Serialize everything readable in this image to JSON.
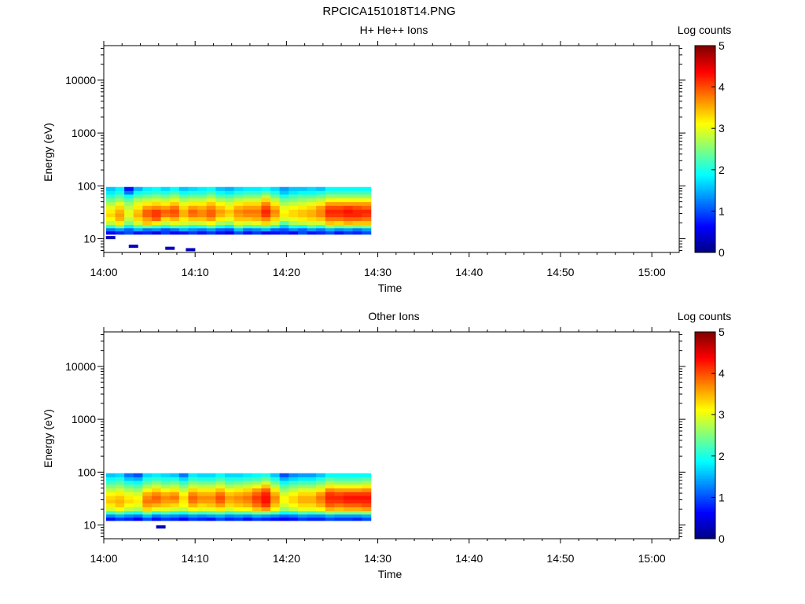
{
  "page": {
    "title": "RPCICA151018T14.PNG"
  },
  "chart_data": [
    {
      "type": "heatmap",
      "title": "H+ He++ Ions",
      "xlabel": "Time",
      "ylabel": "Energy (eV)",
      "x_scale": "time",
      "y_scale": "log",
      "xlim": [
        "14:00",
        "15:03"
      ],
      "ylim": [
        5.5,
        45000
      ],
      "x_ticks": [
        "14:00",
        "14:10",
        "14:20",
        "14:30",
        "14:40",
        "14:50",
        "15:00"
      ],
      "y_ticks": [
        "10",
        "100",
        "1000",
        "10000"
      ],
      "colorbar": {
        "label": "Log counts",
        "range": [
          0,
          5
        ],
        "ticks": [
          "0",
          "1",
          "2",
          "3",
          "4",
          "5"
        ],
        "colormap": "jet"
      },
      "energy_bins_eV": [
        13,
        15,
        17,
        20,
        24,
        28,
        33,
        39,
        46,
        54,
        64,
        75,
        88
      ],
      "times": [
        "14:00:45",
        "14:01:45",
        "14:02:45",
        "14:03:45",
        "14:04:45",
        "14:05:45",
        "14:06:45",
        "14:07:45",
        "14:08:45",
        "14:09:45",
        "14:10:45",
        "14:11:45",
        "14:12:45",
        "14:13:45",
        "14:14:45",
        "14:15:45",
        "14:16:45",
        "14:17:45",
        "14:18:45",
        "14:19:45",
        "14:20:45",
        "14:21:45",
        "14:22:45",
        "14:23:45",
        "14:24:45",
        "14:25:45",
        "14:26:45",
        "14:27:45",
        "14:28:45"
      ],
      "values": [
        [
          0.6,
          0.8,
          1.0,
          0.7,
          0.8,
          0.5,
          0.9,
          0.6,
          0.7,
          0.9,
          0.7,
          0.9,
          0.7,
          0.5,
          1.0,
          0.7,
          0.9,
          0.6,
          0.7,
          0.8,
          0.6,
          1.0,
          0.7,
          0.8,
          1.0,
          0.7,
          0.9,
          0.8,
          1.0
        ],
        [
          1.2,
          1.4,
          1.1,
          1.5,
          1.2,
          1.3,
          1.0,
          1.2,
          1.5,
          1.3,
          1.2,
          1.4,
          1.1,
          1.0,
          1.6,
          1.2,
          1.3,
          1.5,
          1.1,
          1.0,
          1.3,
          1.1,
          1.4,
          1.2,
          1.5,
          1.3,
          1.4,
          1.2,
          1.4
        ],
        [
          2.1,
          2.5,
          1.8,
          2.3,
          2.4,
          2.2,
          2.0,
          2.3,
          2.2,
          2.0,
          2.1,
          2.4,
          2.0,
          1.8,
          2.5,
          2.2,
          2.3,
          2.4,
          2.1,
          1.6,
          2.0,
          1.9,
          2.3,
          2.1,
          2.6,
          2.4,
          2.5,
          2.4,
          2.5
        ],
        [
          2.8,
          3.2,
          2.5,
          2.9,
          3.4,
          3.2,
          2.8,
          3.0,
          2.9,
          2.8,
          2.9,
          3.1,
          2.7,
          2.6,
          3.0,
          2.9,
          3.0,
          3.3,
          2.9,
          2.3,
          2.7,
          2.8,
          2.9,
          2.9,
          3.4,
          3.3,
          3.5,
          3.4,
          3.4
        ],
        [
          3.1,
          3.5,
          2.8,
          3.3,
          3.6,
          3.9,
          3.3,
          3.5,
          3.2,
          3.4,
          3.4,
          3.6,
          3.2,
          3.0,
          3.4,
          3.4,
          3.5,
          3.7,
          3.3,
          2.9,
          3.0,
          3.2,
          3.3,
          3.4,
          3.8,
          3.8,
          3.9,
          3.9,
          3.8
        ],
        [
          3.3,
          3.6,
          3.0,
          3.5,
          3.9,
          4.1,
          3.8,
          3.9,
          3.5,
          3.8,
          3.7,
          3.9,
          3.5,
          3.3,
          3.6,
          3.7,
          3.7,
          4.1,
          3.6,
          3.2,
          3.3,
          3.4,
          3.5,
          3.7,
          4.1,
          4.1,
          4.2,
          4.2,
          4.1
        ],
        [
          3.2,
          3.5,
          3.0,
          3.4,
          3.9,
          4.1,
          3.9,
          4.0,
          3.5,
          3.9,
          3.7,
          3.9,
          3.6,
          3.4,
          3.7,
          3.8,
          3.8,
          4.2,
          3.7,
          3.1,
          3.3,
          3.4,
          3.5,
          3.7,
          4.2,
          4.2,
          4.3,
          4.2,
          4.2
        ],
        [
          3.0,
          3.3,
          2.8,
          3.2,
          3.6,
          3.7,
          3.6,
          3.8,
          3.3,
          3.6,
          3.5,
          3.7,
          3.4,
          3.2,
          3.5,
          3.6,
          3.6,
          4.0,
          3.5,
          3.0,
          3.1,
          3.2,
          3.3,
          3.6,
          4.0,
          4.0,
          4.1,
          4.0,
          3.9
        ],
        [
          2.7,
          3.0,
          2.6,
          3.0,
          3.2,
          3.3,
          3.2,
          3.4,
          3.0,
          3.2,
          3.2,
          3.4,
          3.1,
          2.9,
          3.2,
          3.3,
          3.3,
          3.7,
          3.2,
          2.7,
          2.8,
          2.9,
          3.0,
          3.2,
          3.6,
          3.6,
          3.6,
          3.6,
          3.6
        ],
        [
          2.4,
          2.6,
          2.3,
          2.7,
          2.8,
          2.9,
          2.8,
          3.0,
          2.7,
          2.8,
          2.8,
          3.0,
          2.7,
          2.6,
          2.8,
          2.9,
          2.9,
          3.3,
          2.8,
          2.4,
          2.5,
          2.6,
          2.7,
          2.8,
          3.1,
          3.1,
          3.1,
          3.1,
          3.1
        ],
        [
          2.1,
          2.3,
          1.9,
          2.3,
          2.4,
          2.5,
          2.4,
          2.6,
          2.3,
          2.4,
          2.4,
          2.6,
          2.3,
          2.2,
          2.4,
          2.5,
          2.5,
          2.8,
          2.4,
          2.0,
          2.2,
          2.3,
          2.3,
          2.4,
          2.6,
          2.6,
          2.6,
          2.6,
          2.6
        ],
        [
          1.8,
          2.0,
          1.2,
          1.9,
          2.0,
          2.1,
          2.0,
          2.2,
          1.9,
          2.0,
          2.0,
          2.2,
          1.9,
          1.8,
          2.0,
          2.1,
          2.1,
          2.3,
          2.0,
          1.6,
          1.8,
          1.9,
          1.9,
          2.0,
          2.2,
          2.2,
          2.2,
          2.2,
          2.2
        ],
        [
          1.6,
          1.8,
          0.7,
          1.5,
          1.8,
          1.9,
          1.7,
          1.9,
          1.6,
          1.7,
          1.8,
          1.9,
          1.6,
          1.5,
          1.7,
          1.8,
          1.8,
          1.9,
          1.7,
          1.4,
          1.6,
          1.6,
          1.7,
          1.6,
          1.9,
          1.9,
          1.9,
          1.9,
          1.9
        ]
      ],
      "isolated_points": [
        {
          "time": "14:00:45",
          "energy_eV": 10.5,
          "value": 0.3
        },
        {
          "time": "14:03:15",
          "energy_eV": 7.2,
          "value": 0.3
        },
        {
          "time": "14:07:15",
          "energy_eV": 6.6,
          "value": 0.3
        },
        {
          "time": "14:09:30",
          "energy_eV": 6.2,
          "value": 0.3
        }
      ]
    },
    {
      "type": "heatmap",
      "title": "Other Ions",
      "xlabel": "Time",
      "ylabel": "Energy (eV)",
      "x_scale": "time",
      "y_scale": "log",
      "xlim": [
        "14:00",
        "15:03"
      ],
      "ylim": [
        5.5,
        45000
      ],
      "x_ticks": [
        "14:00",
        "14:10",
        "14:20",
        "14:30",
        "14:40",
        "14:50",
        "15:00"
      ],
      "y_ticks": [
        "10",
        "100",
        "1000",
        "10000"
      ],
      "colorbar": {
        "label": "Log counts",
        "range": [
          0,
          5
        ],
        "ticks": [
          "0",
          "1",
          "2",
          "3",
          "4",
          "5"
        ],
        "colormap": "jet"
      },
      "energy_bins_eV": [
        13,
        15,
        17,
        20,
        24,
        28,
        33,
        39,
        46,
        54,
        64,
        75,
        88
      ],
      "times": [
        "14:00:45",
        "14:01:45",
        "14:02:45",
        "14:03:45",
        "14:04:45",
        "14:05:45",
        "14:06:45",
        "14:07:45",
        "14:08:45",
        "14:09:45",
        "14:10:45",
        "14:11:45",
        "14:12:45",
        "14:13:45",
        "14:14:45",
        "14:15:45",
        "14:16:45",
        "14:17:45",
        "14:18:45",
        "14:19:45",
        "14:20:45",
        "14:21:45",
        "14:22:45",
        "14:23:45",
        "14:24:45",
        "14:25:45",
        "14:26:45",
        "14:27:45",
        "14:28:45"
      ],
      "values": [
        [
          0.7,
          0.9,
          0.8,
          0.6,
          1.0,
          0.7,
          0.9,
          0.8,
          0.6,
          0.9,
          0.8,
          0.7,
          1.0,
          0.8,
          0.9,
          0.7,
          0.9,
          0.8,
          0.7,
          0.6,
          0.7,
          0.9,
          0.8,
          0.8,
          1.0,
          0.9,
          0.9,
          0.8,
          1.0
        ],
        [
          1.3,
          1.5,
          1.3,
          1.2,
          1.6,
          1.2,
          1.4,
          1.3,
          1.2,
          1.4,
          1.3,
          1.4,
          1.5,
          1.3,
          1.4,
          1.3,
          1.5,
          1.4,
          1.3,
          1.1,
          1.2,
          1.4,
          1.3,
          1.3,
          1.5,
          1.4,
          1.4,
          1.4,
          1.5
        ],
        [
          2.2,
          2.4,
          2.1,
          2.0,
          2.5,
          2.1,
          2.3,
          2.1,
          2.0,
          2.3,
          2.2,
          2.3,
          2.4,
          2.2,
          2.3,
          2.3,
          2.5,
          2.5,
          2.3,
          1.9,
          2.0,
          2.3,
          2.2,
          2.3,
          2.6,
          2.5,
          2.5,
          2.5,
          2.6
        ],
        [
          2.9,
          3.1,
          2.8,
          2.7,
          3.3,
          3.0,
          3.0,
          2.9,
          2.8,
          3.1,
          3.0,
          3.0,
          3.2,
          2.9,
          3.1,
          3.1,
          3.4,
          3.6,
          3.1,
          2.6,
          2.8,
          3.0,
          3.0,
          3.1,
          3.5,
          3.4,
          3.5,
          3.5,
          3.6
        ],
        [
          3.2,
          3.4,
          3.1,
          3.0,
          3.6,
          3.5,
          3.4,
          3.3,
          3.1,
          3.5,
          3.3,
          3.4,
          3.6,
          3.3,
          3.4,
          3.5,
          3.8,
          4.1,
          3.4,
          2.9,
          3.1,
          3.3,
          3.3,
          3.5,
          3.9,
          3.8,
          3.9,
          3.9,
          4.0
        ],
        [
          3.4,
          3.5,
          3.3,
          3.2,
          3.8,
          3.8,
          3.6,
          3.6,
          3.2,
          3.8,
          3.6,
          3.6,
          3.9,
          3.5,
          3.6,
          3.7,
          4.0,
          4.3,
          3.6,
          3.1,
          3.3,
          3.5,
          3.5,
          3.7,
          4.1,
          4.1,
          4.2,
          4.2,
          4.2
        ],
        [
          3.3,
          3.4,
          3.2,
          3.1,
          3.7,
          3.9,
          3.7,
          3.8,
          3.3,
          3.9,
          3.7,
          3.7,
          4.0,
          3.6,
          3.7,
          3.8,
          4.1,
          4.3,
          3.7,
          3.1,
          3.3,
          3.5,
          3.5,
          3.8,
          4.2,
          4.2,
          4.3,
          4.3,
          4.3
        ],
        [
          3.1,
          3.2,
          3.0,
          2.9,
          3.5,
          3.7,
          3.5,
          3.6,
          3.1,
          3.7,
          3.5,
          3.5,
          3.8,
          3.4,
          3.5,
          3.6,
          3.9,
          4.2,
          3.5,
          2.9,
          3.1,
          3.3,
          3.3,
          3.6,
          4.1,
          4.0,
          4.1,
          4.1,
          4.1
        ],
        [
          2.8,
          2.9,
          2.7,
          2.6,
          3.1,
          3.3,
          3.1,
          3.2,
          2.8,
          3.3,
          3.2,
          3.2,
          3.4,
          3.1,
          3.2,
          3.3,
          3.6,
          3.9,
          3.2,
          2.6,
          2.8,
          3.0,
          3.0,
          3.2,
          3.7,
          3.6,
          3.6,
          3.6,
          3.7
        ],
        [
          2.5,
          2.6,
          2.4,
          2.3,
          2.7,
          2.9,
          2.7,
          2.8,
          2.5,
          2.9,
          2.8,
          2.8,
          3.0,
          2.7,
          2.8,
          2.9,
          3.1,
          3.4,
          2.8,
          2.3,
          2.5,
          2.6,
          2.6,
          2.8,
          3.2,
          3.1,
          3.1,
          3.1,
          3.2
        ],
        [
          2.2,
          2.3,
          2.0,
          1.9,
          2.3,
          2.5,
          2.3,
          2.4,
          2.1,
          2.5,
          2.4,
          2.4,
          2.6,
          2.3,
          2.4,
          2.5,
          2.6,
          2.9,
          2.4,
          1.9,
          2.1,
          2.2,
          2.2,
          2.4,
          2.7,
          2.6,
          2.6,
          2.6,
          2.7
        ],
        [
          1.9,
          2.0,
          1.6,
          1.5,
          2.0,
          2.1,
          2.0,
          2.0,
          1.7,
          2.1,
          2.0,
          2.0,
          2.2,
          2.0,
          2.0,
          2.1,
          2.2,
          2.4,
          2.0,
          1.5,
          1.7,
          1.8,
          1.8,
          2.0,
          2.3,
          2.2,
          2.2,
          2.2,
          2.3
        ],
        [
          1.6,
          1.7,
          1.2,
          1.0,
          1.7,
          1.8,
          1.7,
          1.6,
          1.2,
          1.8,
          1.7,
          1.7,
          1.9,
          1.7,
          1.7,
          1.8,
          1.9,
          2.0,
          1.6,
          1.0,
          1.3,
          1.4,
          1.4,
          1.6,
          1.9,
          1.9,
          1.9,
          1.9,
          1.9
        ]
      ],
      "isolated_points": [
        {
          "time": "14:06:15",
          "energy_eV": 9.2,
          "value": 0.3
        }
      ]
    }
  ]
}
